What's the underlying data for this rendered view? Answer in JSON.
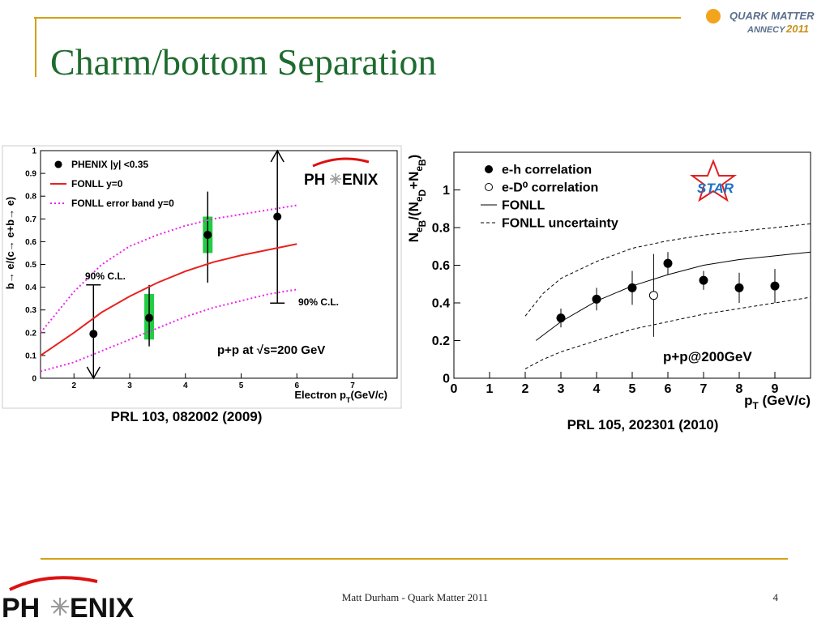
{
  "slide": {
    "title": "Charm/bottom Separation",
    "footer": "Matt Durham - Quark Matter 2011",
    "page_number": "4",
    "conference_logo": [
      "QUARK MATTER",
      "ANNECY",
      "2011"
    ],
    "experiment_logo": [
      "PH",
      "ENIX"
    ]
  },
  "chart_data": [
    {
      "type": "scatter",
      "xlabel": [
        "Electron p",
        "T",
        "(GeV/c)"
      ],
      "ylabel": [
        "b→ e/(c→ e+b→ e)"
      ],
      "xlim": [
        1.4,
        7.8
      ],
      "ylim": [
        0,
        1
      ],
      "xticks": [
        2,
        3,
        4,
        5,
        6,
        7
      ],
      "yticks": [
        0,
        0.1,
        0.2,
        0.3,
        0.4,
        0.5,
        0.6,
        0.7,
        0.8,
        0.9,
        1
      ],
      "logo": [
        "PH",
        "ENIX"
      ],
      "annotations": [
        "90% C.L.",
        "90% C.L.",
        "p+p at √s=200 GeV"
      ],
      "caption": "PRL 103, 082002 (2009)",
      "series": [
        {
          "name": "PHENIX |y| <0.35",
          "color": "#000000",
          "marker": "filled",
          "x": [
            2.35,
            3.35,
            4.4,
            5.65
          ],
          "values": [
            0.195,
            0.265,
            0.63,
            0.71
          ],
          "err_low": [
            0,
            0.14,
            0.42,
            0.33
          ],
          "err_high": [
            0.41,
            0.41,
            0.82,
            1.0
          ],
          "arrow": [
            "down",
            null,
            null,
            "up"
          ],
          "sys_low": [
            null,
            0.17,
            0.55,
            null
          ],
          "sys_high": [
            null,
            0.37,
            0.71,
            null
          ],
          "sys_color": "#22cc44"
        },
        {
          "name": "FONLL y=0",
          "color": "#e8221e",
          "style": "solid",
          "x": [
            1.4,
            2,
            2.5,
            3,
            3.5,
            4,
            4.5,
            5,
            5.5,
            6
          ],
          "values": [
            0.1,
            0.2,
            0.29,
            0.36,
            0.42,
            0.47,
            0.51,
            0.54,
            0.565,
            0.59
          ]
        },
        {
          "name": "FONLL error band y=0",
          "color": "#ee22ee",
          "style": "dotted",
          "x": [
            1.4,
            2,
            2.5,
            3,
            3.5,
            4,
            4.5,
            5,
            5.5,
            6
          ],
          "values": [
            0.2,
            0.38,
            0.5,
            0.58,
            0.63,
            0.67,
            0.7,
            0.72,
            0.74,
            0.76
          ],
          "values_low": [
            0.03,
            0.07,
            0.12,
            0.17,
            0.22,
            0.27,
            0.31,
            0.34,
            0.37,
            0.39
          ]
        }
      ]
    },
    {
      "type": "scatter",
      "xlabel": [
        "p",
        "T",
        " (GeV/c)"
      ],
      "ylabel": [
        "N",
        "e",
        "B",
        "/(N",
        "e",
        "D",
        "+N",
        "e",
        "B",
        ")"
      ],
      "xlim": [
        0,
        10
      ],
      "ylim": [
        0,
        1.2
      ],
      "xticks": [
        0,
        1,
        2,
        3,
        4,
        5,
        6,
        7,
        8,
        9
      ],
      "yticks": [
        0,
        0.2,
        0.4,
        0.6,
        0.8,
        1
      ],
      "annotations": [
        "STAR",
        "p+p@200GeV"
      ],
      "caption": "PRL 105, 202301 (2010)",
      "series": [
        {
          "name": "e-h correlation",
          "color": "#000000",
          "marker": "filled",
          "x": [
            3,
            4,
            5,
            6,
            7,
            8,
            9
          ],
          "values": [
            0.32,
            0.42,
            0.48,
            0.61,
            0.52,
            0.48,
            0.49
          ],
          "errors": [
            0.05,
            0.06,
            0.09,
            0.06,
            0.05,
            0.08,
            0.09
          ]
        },
        {
          "name": "e-D⁰ correlation",
          "color": "#000000",
          "marker": "open",
          "x": [
            5.6
          ],
          "values": [
            0.44
          ],
          "errors": [
            0.22
          ]
        },
        {
          "name": "FONLL",
          "color": "#000000",
          "style": "solid",
          "x": [
            2.3,
            3,
            4,
            5,
            6,
            7,
            8,
            9,
            10
          ],
          "values": [
            0.2,
            0.3,
            0.41,
            0.49,
            0.55,
            0.6,
            0.63,
            0.65,
            0.67
          ]
        },
        {
          "name": "FONLL uncertainty",
          "color": "#000000",
          "style": "dashed",
          "x": [
            2,
            2.5,
            3,
            4,
            5,
            6,
            7,
            8,
            9,
            10
          ],
          "values": [
            0.33,
            0.45,
            0.53,
            0.62,
            0.69,
            0.73,
            0.76,
            0.78,
            0.8,
            0.82
          ],
          "values_low": [
            0.05,
            0.1,
            0.14,
            0.2,
            0.26,
            0.3,
            0.34,
            0.37,
            0.4,
            0.43
          ]
        }
      ]
    }
  ]
}
